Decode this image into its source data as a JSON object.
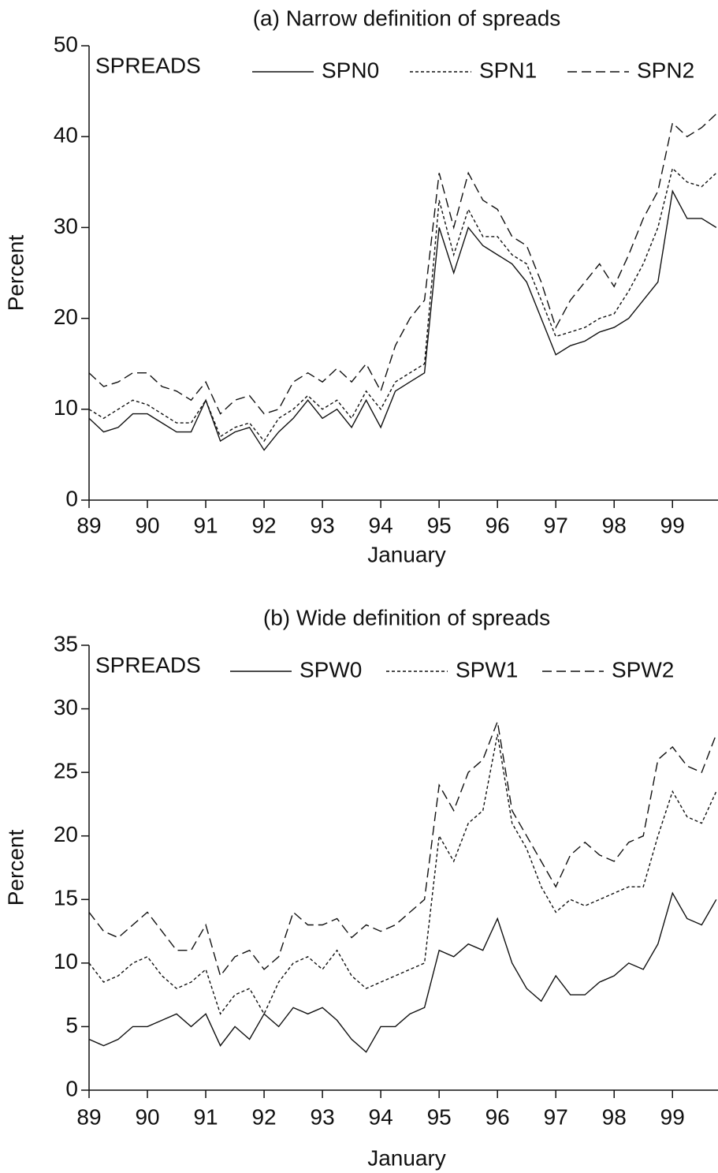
{
  "chart_data": [
    {
      "type": "line",
      "title": "(a) Narrow definition of spreads",
      "xlabel": "January",
      "ylabel": "Percent",
      "legend_title": "SPREADS",
      "x": [
        89,
        89.25,
        89.5,
        89.75,
        90,
        90.25,
        90.5,
        90.75,
        91,
        91.25,
        91.5,
        91.75,
        92,
        92.25,
        92.5,
        92.75,
        93,
        93.25,
        93.5,
        93.75,
        94,
        94.25,
        94.5,
        94.75,
        95,
        95.25,
        95.5,
        95.75,
        96,
        96.25,
        96.5,
        96.75,
        97,
        97.25,
        97.5,
        97.75,
        98,
        98.25,
        98.5,
        98.75,
        99,
        99.25,
        99.5,
        99.75
      ],
      "xlim": [
        89,
        99.78
      ],
      "xticks": [
        89,
        90,
        91,
        92,
        93,
        94,
        95,
        96,
        97,
        98,
        99
      ],
      "ylim": [
        0,
        50
      ],
      "yticks": [
        0,
        10,
        20,
        30,
        40,
        50
      ],
      "series": [
        {
          "name": "SPN0",
          "color": "#111111",
          "style": "solid",
          "values": [
            9,
            7.5,
            8,
            9.5,
            9.5,
            8.5,
            7.5,
            7.5,
            11,
            6.5,
            7.5,
            8,
            5.5,
            7.5,
            9,
            11,
            9,
            10,
            8,
            11,
            8,
            12,
            13,
            14,
            30,
            25,
            30,
            28,
            27,
            26,
            24,
            20,
            16,
            17,
            17.5,
            18.5,
            19,
            20,
            22,
            24,
            34,
            31,
            31,
            30
          ]
        },
        {
          "name": "SPN1",
          "color": "#111111",
          "style": "dotted",
          "values": [
            10,
            9,
            10,
            11,
            10.5,
            9.5,
            8.5,
            8.5,
            11,
            7,
            8,
            8.5,
            6.5,
            9,
            10,
            11.5,
            10,
            11,
            9,
            12,
            10,
            13,
            14,
            15,
            33,
            27,
            32,
            29,
            29,
            27,
            26,
            22,
            18,
            18.5,
            19,
            20,
            20.5,
            23,
            26,
            30,
            36.5,
            35,
            34.5,
            36
          ]
        },
        {
          "name": "SPN2",
          "color": "#111111",
          "style": "dashed",
          "values": [
            14,
            12.5,
            13,
            14,
            14,
            12.5,
            12,
            11,
            13,
            9.5,
            11,
            11.5,
            9.5,
            10,
            13,
            14,
            13,
            14.5,
            13,
            15,
            12,
            17,
            20,
            22,
            36,
            30,
            36,
            33,
            32,
            29,
            28,
            24,
            19,
            22,
            24,
            26,
            23.5,
            27,
            31,
            34,
            41.5,
            40,
            41,
            42.5
          ]
        }
      ]
    },
    {
      "type": "line",
      "title": "(b) Wide definition of spreads",
      "xlabel": "January",
      "ylabel": "Percent",
      "legend_title": "SPREADS",
      "x": [
        89,
        89.25,
        89.5,
        89.75,
        90,
        90.25,
        90.5,
        90.75,
        91,
        91.25,
        91.5,
        91.75,
        92,
        92.25,
        92.5,
        92.75,
        93,
        93.25,
        93.5,
        93.75,
        94,
        94.25,
        94.5,
        94.75,
        95,
        95.25,
        95.5,
        95.75,
        96,
        96.25,
        96.5,
        96.75,
        97,
        97.25,
        97.5,
        97.75,
        98,
        98.25,
        98.5,
        98.75,
        99,
        99.25,
        99.5,
        99.75
      ],
      "xlim": [
        89,
        99.78
      ],
      "xticks": [
        89,
        90,
        91,
        92,
        93,
        94,
        95,
        96,
        97,
        98,
        99
      ],
      "ylim": [
        0,
        35
      ],
      "yticks": [
        0,
        5,
        10,
        15,
        20,
        25,
        30,
        35
      ],
      "series": [
        {
          "name": "SPW0",
          "color": "#111111",
          "style": "solid",
          "values": [
            4,
            3.5,
            4,
            5,
            5,
            5.5,
            6,
            5,
            6,
            3.5,
            5,
            4,
            6,
            5,
            6.5,
            6,
            6.5,
            5.5,
            4,
            3,
            5,
            5,
            6,
            6.5,
            11,
            10.5,
            11.5,
            11,
            13.5,
            10,
            8,
            7,
            9,
            7.5,
            7.5,
            8.5,
            9,
            10,
            9.5,
            11.5,
            15.5,
            13.5,
            13,
            15
          ]
        },
        {
          "name": "SPW1",
          "color": "#111111",
          "style": "dotted",
          "values": [
            10,
            8.5,
            9,
            10,
            10.5,
            9,
            8,
            8.5,
            9.5,
            6,
            7.5,
            8,
            6,
            8.5,
            10,
            10.5,
            9.5,
            11,
            9,
            8,
            8.5,
            9,
            9.5,
            10,
            20,
            18,
            21,
            22,
            28,
            21,
            19,
            16,
            14,
            15,
            14.5,
            15,
            15.5,
            16,
            16,
            20,
            23.5,
            21.5,
            21,
            23.5
          ]
        },
        {
          "name": "SPW2",
          "color": "#111111",
          "style": "dashed",
          "values": [
            14,
            12.5,
            12,
            13,
            14,
            12.5,
            11,
            11,
            13,
            9,
            10.5,
            11,
            9.5,
            10.5,
            14,
            13,
            13,
            13.5,
            12,
            13,
            12.5,
            13,
            14,
            15,
            24,
            22,
            25,
            26,
            29,
            22,
            20,
            18,
            16,
            18.5,
            19.5,
            18.5,
            18,
            19.5,
            20,
            26,
            27,
            25.5,
            25,
            28
          ]
        }
      ]
    }
  ]
}
